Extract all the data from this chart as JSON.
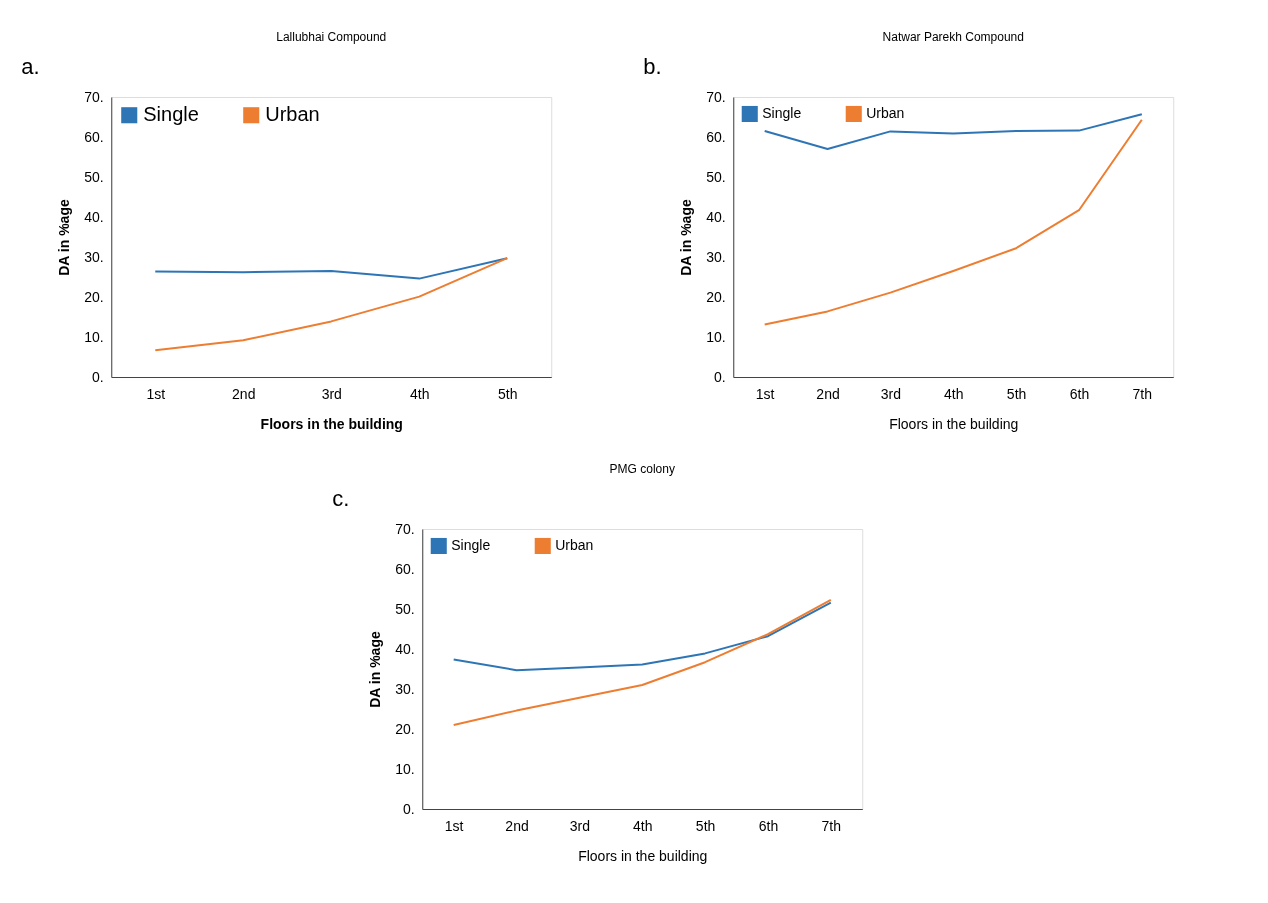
{
  "chart_data": [
    {
      "type": "line",
      "title": "Lallubhai Compound",
      "xlabel": "Floors in the building",
      "ylabel": "DA in %age",
      "annotations": [
        "a."
      ],
      "categories": [
        "1st",
        "2nd",
        "3rd",
        "4th",
        "5th"
      ],
      "series": [
        {
          "name": "Single",
          "color": "#2e75b6",
          "values": [
            26.4,
            26.2,
            26.5,
            24.6,
            29.7
          ]
        },
        {
          "name": "Urban",
          "color": "#ed7d31",
          "values": [
            6.7,
            9.2,
            13.9,
            20.1,
            29.7
          ]
        }
      ],
      "ylim": [
        0,
        70
      ],
      "yticks": [
        {
          "value": 0,
          "label": "0."
        },
        {
          "value": 10,
          "label": "10."
        },
        {
          "value": 20,
          "label": "20."
        },
        {
          "value": 30,
          "label": "30."
        },
        {
          "value": 40,
          "label": "40."
        },
        {
          "value": 50,
          "label": "50."
        },
        {
          "value": 60,
          "label": "60."
        },
        {
          "value": 70,
          "label": "70."
        }
      ],
      "grid": false,
      "legend": "top left",
      "marker": "none",
      "line_style": "solid"
    },
    {
      "type": "line",
      "title": "Natwar Parekh Compound",
      "xlabel": "Floors in the building",
      "ylabel": "DA in %age",
      "annotations": [
        "b."
      ],
      "categories": [
        "1st",
        "2nd",
        "3rd",
        "4th",
        "5th",
        "6th",
        "7th"
      ],
      "series": [
        {
          "name": "Single",
          "color": "#2e75b6",
          "values": [
            61.5,
            57.0,
            61.4,
            60.9,
            61.5,
            61.6,
            65.7
          ]
        },
        {
          "name": "Urban",
          "color": "#ed7d31",
          "values": [
            13.1,
            16.4,
            21.1,
            26.5,
            32.2,
            41.7,
            64.3
          ]
        }
      ],
      "ylim": [
        0,
        70
      ],
      "yticks": [
        {
          "value": 0,
          "label": "0."
        },
        {
          "value": 10,
          "label": "10."
        },
        {
          "value": 20,
          "label": "20."
        },
        {
          "value": 30,
          "label": "30."
        },
        {
          "value": 40,
          "label": "40."
        },
        {
          "value": 50,
          "label": "50."
        },
        {
          "value": 60,
          "label": "60."
        },
        {
          "value": 70,
          "label": "70."
        }
      ],
      "grid": false,
      "legend": "top left",
      "marker": "none",
      "line_style": "solid"
    },
    {
      "type": "line",
      "title": "PMG colony",
      "xlabel": "Floors in the building",
      "ylabel": "DA in %age",
      "annotations": [
        "c."
      ],
      "categories": [
        "1st",
        "2nd",
        "3rd",
        "4th",
        "5th",
        "6th",
        "7th"
      ],
      "series": [
        {
          "name": "Single",
          "color": "#2e75b6",
          "values": [
            37.4,
            34.7,
            35.4,
            36.1,
            38.9,
            43.2,
            51.6
          ]
        },
        {
          "name": "Urban",
          "color": "#ed7d31",
          "values": [
            21.0,
            24.6,
            27.8,
            31.0,
            36.7,
            43.7,
            52.3
          ]
        }
      ],
      "ylim": [
        0,
        70
      ],
      "yticks": [
        {
          "value": 0,
          "label": "0."
        },
        {
          "value": 10,
          "label": "10."
        },
        {
          "value": 20,
          "label": "20."
        },
        {
          "value": 30,
          "label": "30."
        },
        {
          "value": 40,
          "label": "40."
        },
        {
          "value": 50,
          "label": "50."
        },
        {
          "value": 60,
          "label": "60."
        },
        {
          "value": 70,
          "label": "70."
        }
      ],
      "grid": false,
      "legend": "top left",
      "marker": "none",
      "line_style": "solid"
    }
  ]
}
